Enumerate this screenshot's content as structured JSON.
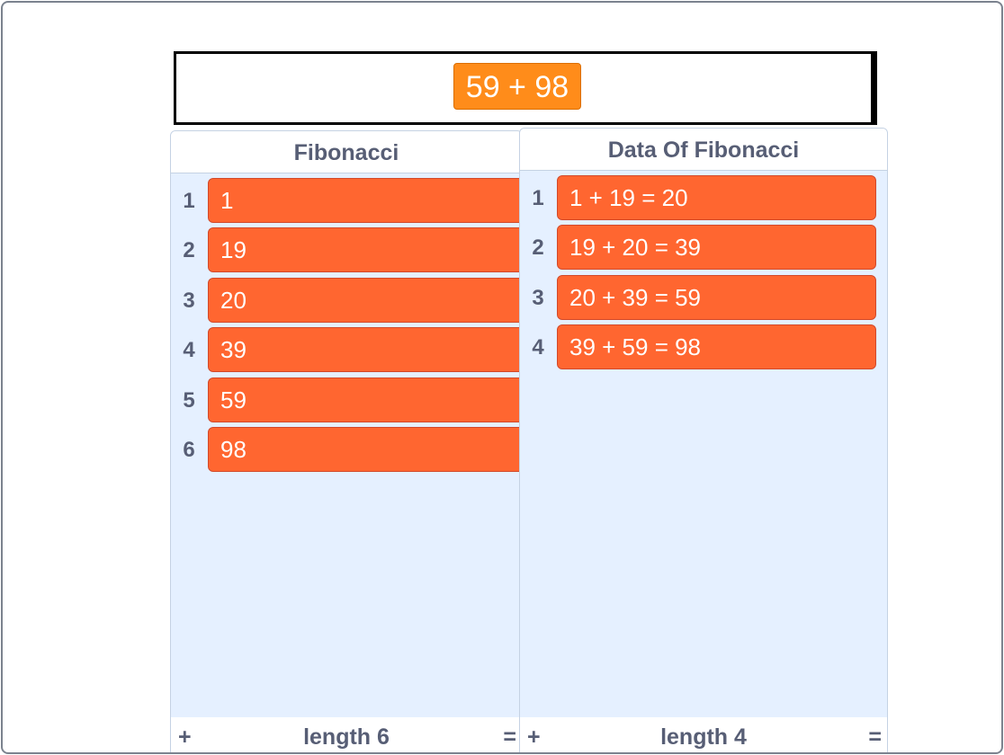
{
  "stage": {
    "say_text": "59 + 98"
  },
  "fibonacci_list": {
    "title": "Fibonacci",
    "items": [
      {
        "index": "1",
        "value": "1"
      },
      {
        "index": "2",
        "value": "19"
      },
      {
        "index": "3",
        "value": "20"
      },
      {
        "index": "4",
        "value": "39"
      },
      {
        "index": "5",
        "value": "59"
      },
      {
        "index": "6",
        "value": "98"
      }
    ],
    "footer": {
      "add": "+",
      "length": "length 6",
      "resize": "="
    }
  },
  "data_list": {
    "title": "Data Of Fibonacci",
    "items": [
      {
        "index": "1",
        "value": "1 + 19 = 20"
      },
      {
        "index": "2",
        "value": "19 + 20 = 39"
      },
      {
        "index": "3",
        "value": "20 + 39 = 59"
      },
      {
        "index": "4",
        "value": "39 + 59 = 98"
      }
    ],
    "footer": {
      "add": "+",
      "length": "length 4",
      "resize": "="
    }
  },
  "colors": {
    "list_item": "#ff6630",
    "say_bubble": "#ff8c1a",
    "list_background": "#e5f0ff",
    "label_text": "#575e75"
  }
}
